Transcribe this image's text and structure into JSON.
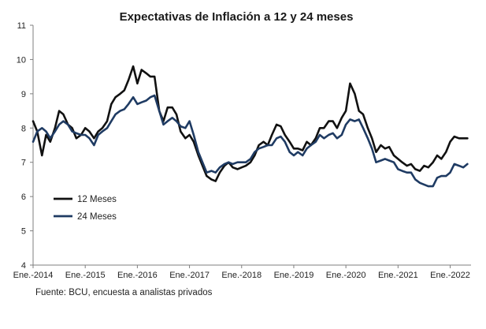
{
  "chart_data": {
    "type": "line",
    "title": "Expectativas de Inflación a 12 y 24 meses",
    "xlabel": "",
    "ylabel": "",
    "ylim": [
      4,
      11
    ],
    "yticks": [
      4,
      5,
      6,
      7,
      8,
      9,
      10,
      11
    ],
    "x_tick_labels": [
      "Ene.-2014",
      "Ene.-2015",
      "Ene.-2016",
      "Ene.-2017",
      "Ene.-2018",
      "Ene.-2019",
      "Ene.-2020",
      "Ene.-2021",
      "Ene.-2022"
    ],
    "x_range": [
      2014.0,
      2022.4
    ],
    "legend_position": "left-middle",
    "grid": false,
    "source": "Fuente: BCU, encuesta a analistas privados",
    "series": [
      {
        "name": "12 Meses",
        "color": "#111111",
        "points": [
          [
            2014.0,
            8.2
          ],
          [
            2014.08,
            7.9
          ],
          [
            2014.17,
            7.2
          ],
          [
            2014.25,
            7.8
          ],
          [
            2014.33,
            7.6
          ],
          [
            2014.42,
            8.0
          ],
          [
            2014.5,
            8.5
          ],
          [
            2014.58,
            8.4
          ],
          [
            2014.67,
            8.1
          ],
          [
            2014.75,
            8.0
          ],
          [
            2014.83,
            7.7
          ],
          [
            2014.92,
            7.8
          ],
          [
            2015.0,
            8.0
          ],
          [
            2015.08,
            7.9
          ],
          [
            2015.17,
            7.7
          ],
          [
            2015.25,
            7.9
          ],
          [
            2015.33,
            8.0
          ],
          [
            2015.42,
            8.2
          ],
          [
            2015.5,
            8.7
          ],
          [
            2015.58,
            8.9
          ],
          [
            2015.67,
            9.0
          ],
          [
            2015.75,
            9.1
          ],
          [
            2015.83,
            9.4
          ],
          [
            2015.92,
            9.8
          ],
          [
            2016.0,
            9.3
          ],
          [
            2016.08,
            9.7
          ],
          [
            2016.17,
            9.6
          ],
          [
            2016.25,
            9.5
          ],
          [
            2016.33,
            9.5
          ],
          [
            2016.42,
            8.5
          ],
          [
            2016.5,
            8.2
          ],
          [
            2016.58,
            8.6
          ],
          [
            2016.67,
            8.6
          ],
          [
            2016.75,
            8.4
          ],
          [
            2016.83,
            7.9
          ],
          [
            2016.92,
            7.7
          ],
          [
            2017.0,
            7.8
          ],
          [
            2017.08,
            7.6
          ],
          [
            2017.17,
            7.2
          ],
          [
            2017.25,
            6.9
          ],
          [
            2017.33,
            6.6
          ],
          [
            2017.42,
            6.5
          ],
          [
            2017.5,
            6.45
          ],
          [
            2017.58,
            6.7
          ],
          [
            2017.67,
            6.9
          ],
          [
            2017.75,
            7.0
          ],
          [
            2017.83,
            6.85
          ],
          [
            2017.92,
            6.8
          ],
          [
            2018.0,
            6.85
          ],
          [
            2018.08,
            6.9
          ],
          [
            2018.17,
            7.0
          ],
          [
            2018.25,
            7.2
          ],
          [
            2018.33,
            7.5
          ],
          [
            2018.42,
            7.6
          ],
          [
            2018.5,
            7.5
          ],
          [
            2018.58,
            7.8
          ],
          [
            2018.67,
            8.1
          ],
          [
            2018.75,
            8.05
          ],
          [
            2018.83,
            7.8
          ],
          [
            2018.92,
            7.6
          ],
          [
            2019.0,
            7.4
          ],
          [
            2019.08,
            7.4
          ],
          [
            2019.17,
            7.35
          ],
          [
            2019.25,
            7.6
          ],
          [
            2019.33,
            7.5
          ],
          [
            2019.42,
            7.7
          ],
          [
            2019.5,
            8.0
          ],
          [
            2019.58,
            8.0
          ],
          [
            2019.67,
            8.2
          ],
          [
            2019.75,
            8.2
          ],
          [
            2019.83,
            8.0
          ],
          [
            2019.92,
            8.3
          ],
          [
            2020.0,
            8.5
          ],
          [
            2020.08,
            9.3
          ],
          [
            2020.17,
            9.0
          ],
          [
            2020.25,
            8.5
          ],
          [
            2020.33,
            8.4
          ],
          [
            2020.42,
            8.0
          ],
          [
            2020.5,
            7.7
          ],
          [
            2020.58,
            7.3
          ],
          [
            2020.67,
            7.5
          ],
          [
            2020.75,
            7.4
          ],
          [
            2020.83,
            7.45
          ],
          [
            2020.92,
            7.2
          ],
          [
            2021.0,
            7.1
          ],
          [
            2021.08,
            7.0
          ],
          [
            2021.17,
            6.9
          ],
          [
            2021.25,
            6.95
          ],
          [
            2021.33,
            6.8
          ],
          [
            2021.42,
            6.75
          ],
          [
            2021.5,
            6.9
          ],
          [
            2021.58,
            6.85
          ],
          [
            2021.67,
            7.0
          ],
          [
            2021.75,
            7.2
          ],
          [
            2021.83,
            7.1
          ],
          [
            2021.92,
            7.3
          ],
          [
            2022.0,
            7.6
          ],
          [
            2022.08,
            7.75
          ],
          [
            2022.17,
            7.7
          ],
          [
            2022.25,
            7.7
          ],
          [
            2022.33,
            7.7
          ]
        ]
      },
      {
        "name": "24 Meses",
        "color": "#1f3b63",
        "points": [
          [
            2014.0,
            7.6
          ],
          [
            2014.08,
            7.9
          ],
          [
            2014.17,
            8.0
          ],
          [
            2014.25,
            7.9
          ],
          [
            2014.33,
            7.7
          ],
          [
            2014.42,
            7.9
          ],
          [
            2014.5,
            8.1
          ],
          [
            2014.58,
            8.2
          ],
          [
            2014.67,
            8.1
          ],
          [
            2014.75,
            7.9
          ],
          [
            2014.83,
            7.85
          ],
          [
            2014.92,
            7.8
          ],
          [
            2015.0,
            7.8
          ],
          [
            2015.08,
            7.7
          ],
          [
            2015.17,
            7.5
          ],
          [
            2015.25,
            7.8
          ],
          [
            2015.33,
            7.9
          ],
          [
            2015.42,
            8.0
          ],
          [
            2015.5,
            8.2
          ],
          [
            2015.58,
            8.4
          ],
          [
            2015.67,
            8.5
          ],
          [
            2015.75,
            8.55
          ],
          [
            2015.83,
            8.7
          ],
          [
            2015.92,
            8.9
          ],
          [
            2016.0,
            8.7
          ],
          [
            2016.08,
            8.75
          ],
          [
            2016.17,
            8.8
          ],
          [
            2016.25,
            8.9
          ],
          [
            2016.33,
            8.95
          ],
          [
            2016.42,
            8.5
          ],
          [
            2016.5,
            8.1
          ],
          [
            2016.58,
            8.2
          ],
          [
            2016.67,
            8.3
          ],
          [
            2016.75,
            8.2
          ],
          [
            2016.83,
            8.05
          ],
          [
            2016.92,
            8.0
          ],
          [
            2017.0,
            8.2
          ],
          [
            2017.08,
            7.8
          ],
          [
            2017.17,
            7.3
          ],
          [
            2017.25,
            7.0
          ],
          [
            2017.33,
            6.7
          ],
          [
            2017.42,
            6.75
          ],
          [
            2017.5,
            6.7
          ],
          [
            2017.58,
            6.85
          ],
          [
            2017.67,
            6.95
          ],
          [
            2017.75,
            7.0
          ],
          [
            2017.83,
            6.95
          ],
          [
            2017.92,
            7.0
          ],
          [
            2018.0,
            7.0
          ],
          [
            2018.08,
            7.0
          ],
          [
            2018.17,
            7.1
          ],
          [
            2018.25,
            7.3
          ],
          [
            2018.33,
            7.4
          ],
          [
            2018.42,
            7.45
          ],
          [
            2018.5,
            7.5
          ],
          [
            2018.58,
            7.5
          ],
          [
            2018.67,
            7.7
          ],
          [
            2018.75,
            7.75
          ],
          [
            2018.83,
            7.6
          ],
          [
            2018.92,
            7.3
          ],
          [
            2019.0,
            7.2
          ],
          [
            2019.08,
            7.3
          ],
          [
            2019.17,
            7.2
          ],
          [
            2019.25,
            7.4
          ],
          [
            2019.33,
            7.5
          ],
          [
            2019.42,
            7.6
          ],
          [
            2019.5,
            7.8
          ],
          [
            2019.58,
            7.7
          ],
          [
            2019.67,
            7.8
          ],
          [
            2019.75,
            7.85
          ],
          [
            2019.83,
            7.7
          ],
          [
            2019.92,
            7.8
          ],
          [
            2020.0,
            8.1
          ],
          [
            2020.08,
            8.25
          ],
          [
            2020.17,
            8.2
          ],
          [
            2020.25,
            8.25
          ],
          [
            2020.33,
            8.0
          ],
          [
            2020.42,
            7.7
          ],
          [
            2020.5,
            7.4
          ],
          [
            2020.58,
            7.0
          ],
          [
            2020.67,
            7.05
          ],
          [
            2020.75,
            7.1
          ],
          [
            2020.83,
            7.05
          ],
          [
            2020.92,
            7.0
          ],
          [
            2021.0,
            6.8
          ],
          [
            2021.08,
            6.75
          ],
          [
            2021.17,
            6.7
          ],
          [
            2021.25,
            6.7
          ],
          [
            2021.33,
            6.5
          ],
          [
            2021.42,
            6.4
          ],
          [
            2021.5,
            6.35
          ],
          [
            2021.58,
            6.3
          ],
          [
            2021.67,
            6.3
          ],
          [
            2021.75,
            6.55
          ],
          [
            2021.83,
            6.6
          ],
          [
            2021.92,
            6.6
          ],
          [
            2022.0,
            6.7
          ],
          [
            2022.08,
            6.95
          ],
          [
            2022.17,
            6.9
          ],
          [
            2022.25,
            6.85
          ],
          [
            2022.33,
            6.95
          ]
        ]
      }
    ]
  }
}
